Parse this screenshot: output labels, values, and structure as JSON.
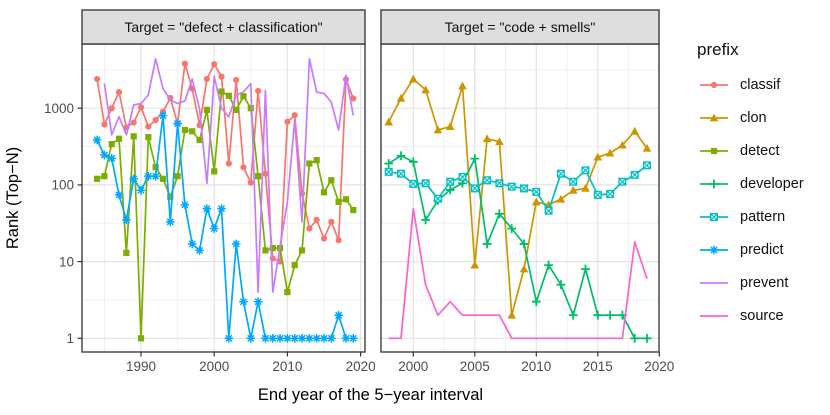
{
  "figure": {
    "x_axis_title": "End year of the 5−year interval",
    "y_axis_title": "Rank (Top−N)"
  },
  "facets": [
    {
      "strip_label": "Target = \"defect + classification\""
    },
    {
      "strip_label": "Target = \"code + smells\""
    }
  ],
  "axes": {
    "y": {
      "scale": "log10",
      "ticks": [
        1000,
        100,
        10,
        1
      ],
      "range": [
        1,
        6000
      ]
    },
    "x": {
      "left_ticks": [
        1990,
        2000,
        2010,
        2020
      ],
      "right_ticks": [
        2000,
        2005,
        2010,
        2015,
        2020
      ]
    }
  },
  "legend": {
    "title": "prefix",
    "entries": [
      {
        "label": "classif",
        "color": "#F8766D",
        "marker": "circle"
      },
      {
        "label": "clon",
        "color": "#CD9600",
        "marker": "triangle"
      },
      {
        "label": "detect",
        "color": "#7CAE00",
        "marker": "square"
      },
      {
        "label": "developer",
        "color": "#00BE67",
        "marker": "plus"
      },
      {
        "label": "pattern",
        "color": "#00BFC4",
        "marker": "square-x"
      },
      {
        "label": "predict",
        "color": "#00A9FF",
        "marker": "asterisk"
      },
      {
        "label": "prevent",
        "color": "#C77CFF",
        "marker": "none"
      },
      {
        "label": "source",
        "color": "#FF61CC",
        "marker": "none"
      }
    ]
  },
  "chart_data": [
    {
      "type": "line",
      "facet": "Target = \"defect + classification\"",
      "xlabel": "End year of the 5−year interval",
      "ylabel": "Rank (Top−N)",
      "ylog": true,
      "ylim": [
        1,
        6000
      ],
      "grid": "major+minor",
      "legend_position": "right",
      "x": [
        1984,
        1985,
        1986,
        1987,
        1988,
        1989,
        1990,
        1991,
        1992,
        1993,
        1994,
        1995,
        1996,
        1997,
        1998,
        1999,
        2000,
        2001,
        2002,
        2003,
        2004,
        2005,
        2006,
        2007,
        2008,
        2009,
        2010,
        2011,
        2012,
        2013,
        2014,
        2015,
        2016,
        2017,
        2018,
        2019
      ],
      "series": [
        {
          "name": "classif",
          "color": "#F8766D",
          "marker": "circle",
          "values": [
            2400,
            615,
            1000,
            1620,
            560,
            650,
            1030,
            575,
            700,
            900,
            1360,
            630,
            3800,
            1800,
            600,
            2400,
            3750,
            2580,
            190,
            2330,
            170,
            107,
            1680,
            140,
            11,
            10,
            665,
            810,
            77,
            27,
            35,
            20,
            33,
            19,
            2370,
            1340
          ]
        },
        {
          "name": "detect",
          "color": "#7CAE00",
          "marker": "square",
          "values": [
            120,
            130,
            340,
            400,
            13,
            430,
            1,
            420,
            170,
            120,
            70,
            130,
            520,
            500,
            385,
            950,
            150,
            1650,
            1450,
            950,
            1430,
            1000,
            130,
            14,
            15,
            15,
            4,
            9,
            14,
            190,
            210,
            80,
            115,
            60,
            65,
            47
          ]
        },
        {
          "name": "predict",
          "color": "#00A9FF",
          "marker": "asterisk",
          "values": [
            385,
            245,
            222,
            74,
            35,
            120,
            85,
            130,
            130,
            800,
            33,
            630,
            55,
            17,
            14,
            49,
            27,
            49,
            1,
            17,
            3,
            1,
            3,
            1,
            1,
            1,
            1,
            1,
            1,
            1,
            1,
            1,
            1,
            2,
            1,
            1
          ]
        },
        {
          "name": "prevent",
          "color": "#C77CFF",
          "marker": "none",
          "values": [
            null,
            2100,
            450,
            775,
            450,
            1100,
            1150,
            1480,
            4400,
            1800,
            1280,
            1150,
            1250,
            2400,
            970,
            105,
            2600,
            1000,
            770,
            1480,
            1630,
            2100,
            4,
            1700,
            4,
            16,
            60,
            700,
            33,
            4400,
            1620,
            1560,
            1200,
            520,
            2700,
            800
          ]
        }
      ]
    },
    {
      "type": "line",
      "facet": "Target = \"code + smells\"",
      "xlabel": "End year of the 5−year interval",
      "ylabel": "Rank (Top−N)",
      "ylog": true,
      "ylim": [
        1,
        6000
      ],
      "grid": "major+minor",
      "legend_position": "right",
      "x": [
        1998,
        1999,
        2000,
        2001,
        2002,
        2003,
        2004,
        2005,
        2006,
        2007,
        2008,
        2009,
        2010,
        2011,
        2012,
        2013,
        2014,
        2015,
        2016,
        2017,
        2018,
        2019
      ],
      "series": [
        {
          "name": "clon",
          "color": "#CD9600",
          "marker": "triangle",
          "values": [
            660,
            1350,
            2400,
            1730,
            520,
            575,
            1950,
            9,
            400,
            365,
            2,
            8,
            60,
            55,
            65,
            85,
            90,
            230,
            260,
            330,
            500,
            300
          ]
        },
        {
          "name": "developer",
          "color": "#00BE67",
          "marker": "plus",
          "values": [
            190,
            240,
            200,
            35,
            63,
            86,
            105,
            220,
            17,
            42,
            27,
            17,
            3,
            9,
            5,
            2,
            8,
            2,
            2,
            2,
            1,
            1
          ]
        },
        {
          "name": "pattern",
          "color": "#00BFC4",
          "marker": "square-x",
          "values": [
            148,
            140,
            103,
            105,
            66,
            110,
            127,
            90,
            115,
            105,
            95,
            90,
            81,
            46,
            140,
            110,
            155,
            74,
            76,
            110,
            135,
            180
          ]
        },
        {
          "name": "source",
          "color": "#FF61CC",
          "marker": "none",
          "values": [
            1,
            1,
            49,
            5,
            2,
            3,
            2,
            2,
            2,
            2,
            1,
            1,
            1,
            1,
            1,
            1,
            1,
            1,
            1,
            1,
            18,
            6
          ]
        }
      ]
    }
  ]
}
